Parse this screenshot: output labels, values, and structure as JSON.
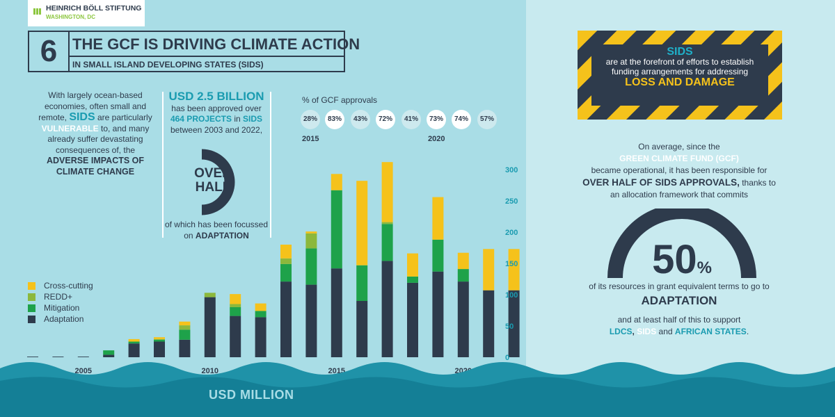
{
  "logo": {
    "name": "HEINRICH BÖLL STIFTUNG",
    "sub": "WASHINGTON, DC"
  },
  "header": {
    "number": "6",
    "title": "THE GCF IS DRIVING CLIMATE ACTION",
    "subtitle": "IN SMALL ISLAND DEVELOPING STATES (SIDS)"
  },
  "intro": {
    "p1": "With largely ocean-based economies, often small and remote,",
    "sids": "SIDS",
    "p2": "are particularly",
    "vulnerable": "VULNERABLE",
    "p3": "to, and many already suffer devastating consequences of, the",
    "adverse": "ADVERSE IMPACTS OF CLIMATE CHANGE"
  },
  "stat": {
    "amount": "USD 2.5 BILLION",
    "approved": "has been approved over",
    "projects": "464 PROJECTS",
    "in": "in",
    "sids": "SIDS",
    "period": "between 2003 and 2022,",
    "over_half": "OVER HALF",
    "focus": "of which has been focussed on",
    "adaptation": "ADAPTATION"
  },
  "gcf_approvals": {
    "label": "% of GCF approvals",
    "values": [
      "28%",
      "83%",
      "43%",
      "72%",
      "41%",
      "73%",
      "74%",
      "57%"
    ],
    "year_start": "2015",
    "year_end": "2020"
  },
  "colors": {
    "adaptation": "#2e3b4c",
    "mitigation": "#1ea24a",
    "redd": "#8cb83c",
    "crosscutting": "#f5c21b",
    "teal": "#1a9bb0"
  },
  "chart_data": {
    "type": "bar",
    "stacked": true,
    "categories": [
      2003,
      2004,
      2005,
      2006,
      2007,
      2008,
      2009,
      2010,
      2011,
      2012,
      2013,
      2014,
      2015,
      2016,
      2017,
      2018,
      2019,
      2020,
      2021,
      2022
    ],
    "series": [
      {
        "name": "Adaptation",
        "values": [
          1,
          1,
          1,
          4,
          22,
          25,
          28,
          96,
          66,
          64,
          121,
          116,
          142,
          90,
          154,
          119,
          137,
          121,
          107,
          107
        ]
      },
      {
        "name": "Mitigation",
        "values": [
          0,
          0,
          0,
          7,
          3,
          3,
          16,
          0,
          14,
          10,
          28,
          58,
          125,
          57,
          59,
          10,
          51,
          20,
          0,
          0
        ]
      },
      {
        "name": "REDD+",
        "values": [
          0,
          0,
          0,
          0,
          0,
          1,
          7,
          7,
          5,
          0,
          9,
          24,
          0,
          0,
          3,
          0,
          0,
          0,
          0,
          0
        ]
      },
      {
        "name": "Cross-cutting",
        "values": [
          0,
          0,
          0,
          0,
          4,
          3,
          6,
          0,
          16,
          12,
          22,
          3,
          26,
          135,
          96,
          37,
          68,
          26,
          66,
          66
        ]
      }
    ],
    "xticks": [
      "2005",
      "2010",
      "2015",
      "2020"
    ],
    "yticks": [
      "0",
      "50",
      "100",
      "150",
      "200",
      "250",
      "300"
    ],
    "ylim": [
      0,
      300
    ],
    "ylabel": "USD MILLION",
    "legend": [
      "Cross-cutting",
      "REDD+",
      "Mitigation",
      "Adaptation"
    ]
  },
  "callout": {
    "sids": "SIDS",
    "text": "are at the forefront of efforts to establish funding arrangements for addressing",
    "loss": "LOSS AND DAMAGE"
  },
  "right": {
    "avg": "On average, since the",
    "gcf": "GREEN CLIMATE FUND (GCF)",
    "operational": "became operational, it has been responsible for",
    "over_half": "OVER HALF OF SIDS APPROVALS,",
    "thanks": "thanks to",
    "framework": "an allocation framework that commits",
    "percent_value": "50",
    "percent_sign": "%",
    "gauge_fraction": 0.5,
    "resources": "of its resources in grant equivalent terms to go to",
    "adaptation": "ADAPTATION",
    "support": "and at least half of this to support",
    "ldcs": "LDCS",
    "comma": ",",
    "sids": "SIDS",
    "and": "and",
    "african": "AFRICAN STATES",
    "period": "."
  }
}
